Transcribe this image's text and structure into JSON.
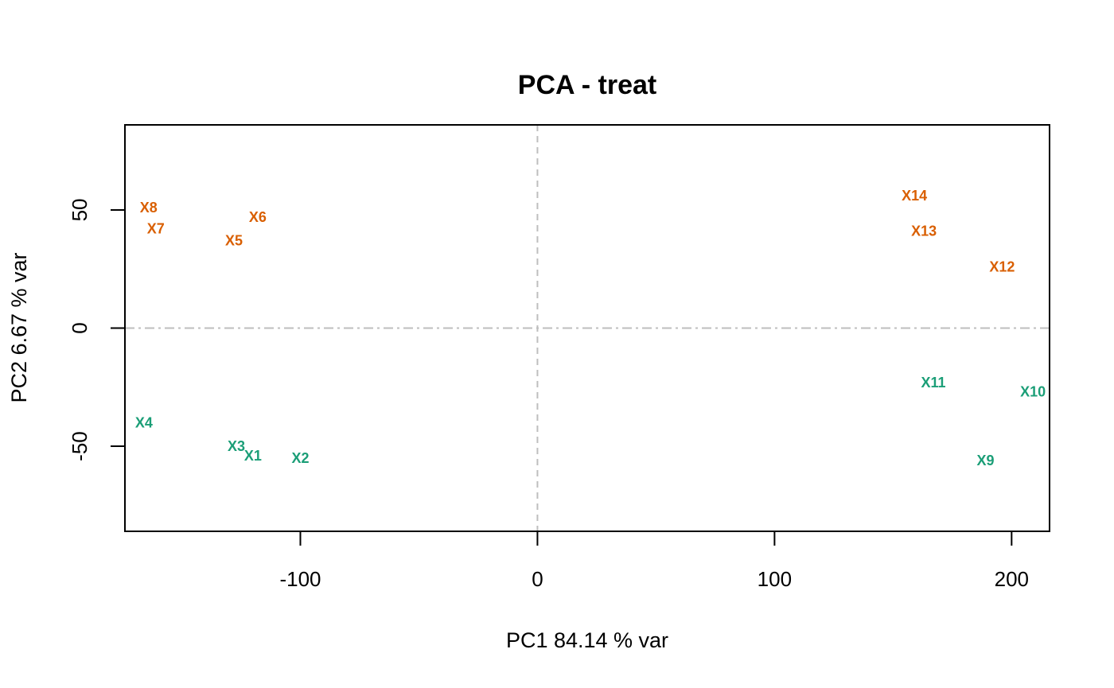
{
  "chart_data": {
    "type": "scatter",
    "title": "PCA - treat",
    "xlabel": "PC1   84.14 % var",
    "ylabel": "PC2   6.67 % var",
    "xlim": [
      -174,
      216
    ],
    "ylim": [
      -86,
      86
    ],
    "xticks": [
      -100,
      0,
      100,
      200
    ],
    "yticks": [
      -50,
      0,
      50
    ],
    "reference_lines": {
      "x": 0,
      "y": 0,
      "color": "#bebebe"
    },
    "grid": false,
    "colors": {
      "orange": "#d95f02",
      "green": "#1b9e77"
    },
    "series": [
      {
        "color": "#d95f02",
        "points": [
          {
            "label": "X8",
            "x": -164,
            "y": 51
          },
          {
            "label": "X7",
            "x": -161,
            "y": 42
          },
          {
            "label": "X6",
            "x": -118,
            "y": 47
          },
          {
            "label": "X5",
            "x": -128,
            "y": 37
          },
          {
            "label": "X14",
            "x": 159,
            "y": 56
          },
          {
            "label": "X13",
            "x": 163,
            "y": 41
          },
          {
            "label": "X12",
            "x": 196,
            "y": 26
          }
        ]
      },
      {
        "color": "#1b9e77",
        "points": [
          {
            "label": "X4",
            "x": -166,
            "y": -40
          },
          {
            "label": "X3",
            "x": -127,
            "y": -50
          },
          {
            "label": "X1",
            "x": -120,
            "y": -54
          },
          {
            "label": "X2",
            "x": -100,
            "y": -55
          },
          {
            "label": "X11",
            "x": 167,
            "y": -23
          },
          {
            "label": "X10",
            "x": 209,
            "y": -27
          },
          {
            "label": "X9",
            "x": 189,
            "y": -56
          }
        ]
      }
    ]
  }
}
